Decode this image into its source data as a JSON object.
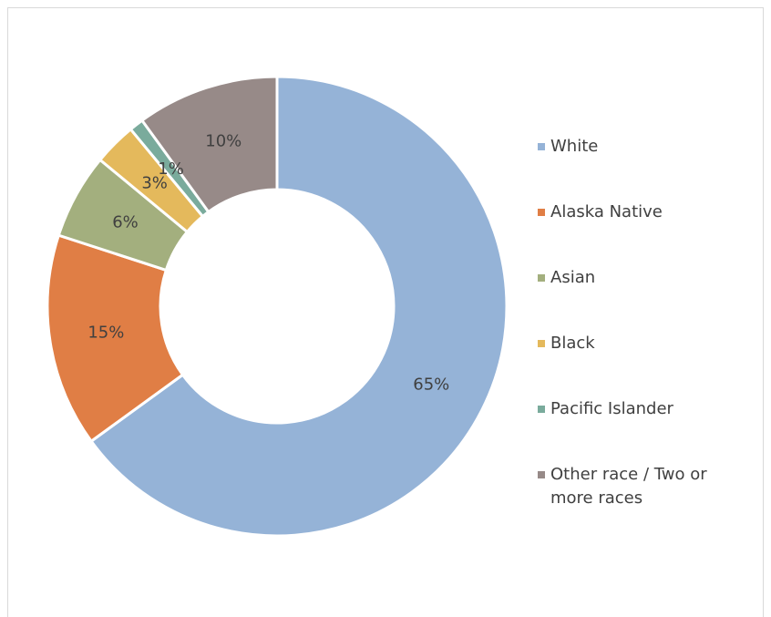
{
  "chart_data": {
    "type": "donut",
    "categories": [
      "White",
      "Alaska Native",
      "Asian",
      "Black",
      "Pacific Islander",
      "Other race / Two or more races"
    ],
    "values": [
      65,
      15,
      6,
      3,
      1,
      10
    ],
    "value_labels": [
      "65%",
      "15%",
      "6%",
      "3%",
      "1%",
      "10%"
    ],
    "colors": [
      "#95b3d7",
      "#e07e45",
      "#a3af7e",
      "#e4b95c",
      "#7aab9c",
      "#978a88"
    ],
    "legend": "right"
  }
}
